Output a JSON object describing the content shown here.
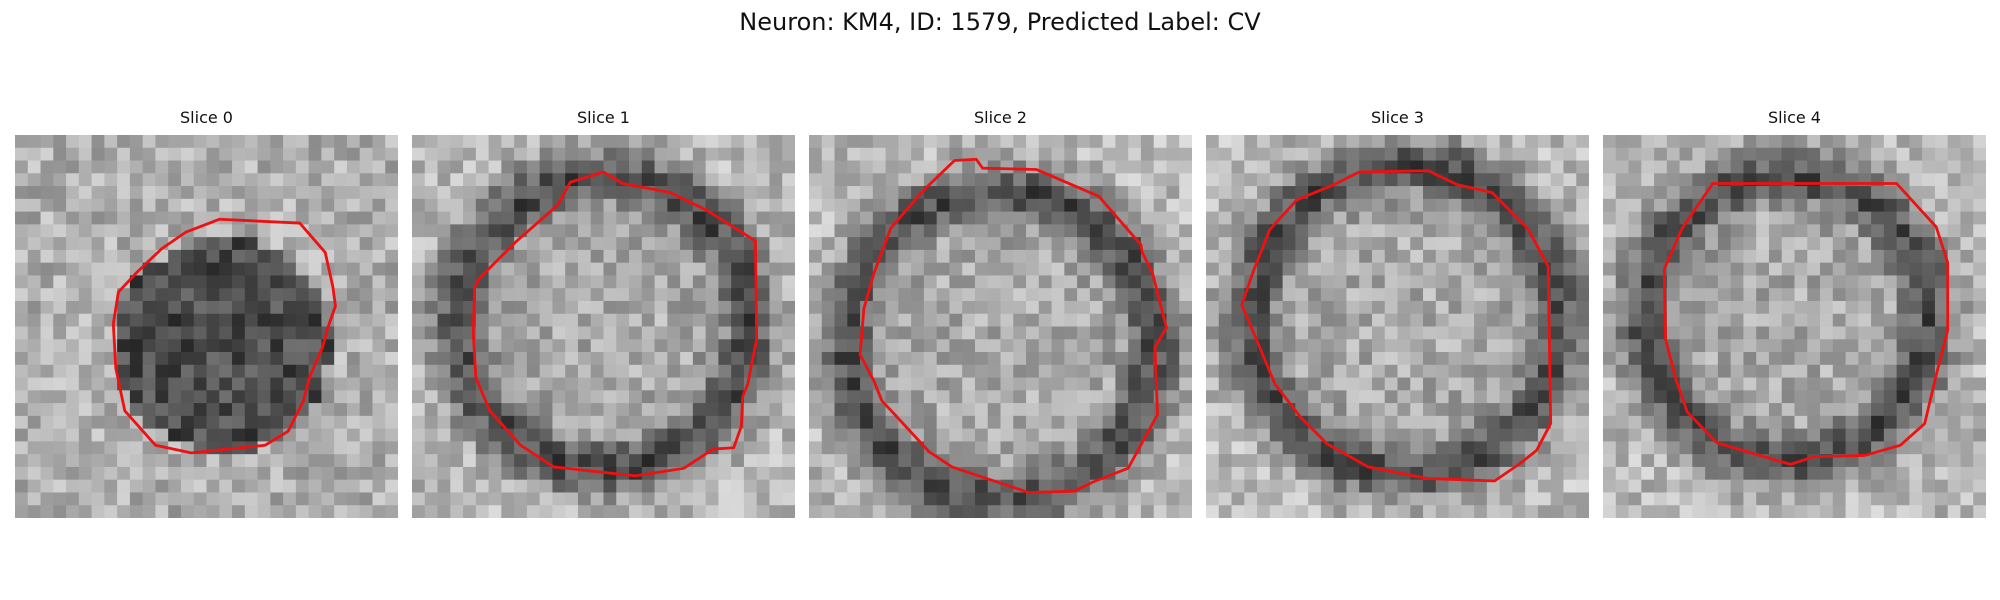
{
  "suptitle": "Neuron: KM4, ID: 1579, Predicted Label: CV",
  "panels": [
    {
      "title": "Slice 0",
      "seed": 11,
      "center": [
        0.54,
        0.55
      ],
      "radius": 0.28,
      "dark_ring": false
    },
    {
      "title": "Slice 1",
      "seed": 23,
      "center": [
        0.5,
        0.49
      ],
      "radius": 0.38,
      "dark_ring": true
    },
    {
      "title": "Slice 2",
      "seed": 37,
      "center": [
        0.5,
        0.55
      ],
      "radius": 0.4,
      "dark_ring": true
    },
    {
      "title": "Slice 3",
      "seed": 41,
      "center": [
        0.52,
        0.48
      ],
      "radius": 0.4,
      "dark_ring": true
    },
    {
      "title": "Slice 4",
      "seed": 53,
      "center": [
        0.48,
        0.48
      ],
      "radius": 0.37,
      "dark_ring": true
    }
  ],
  "grid_size": 30,
  "contour_color": "#ee1111"
}
